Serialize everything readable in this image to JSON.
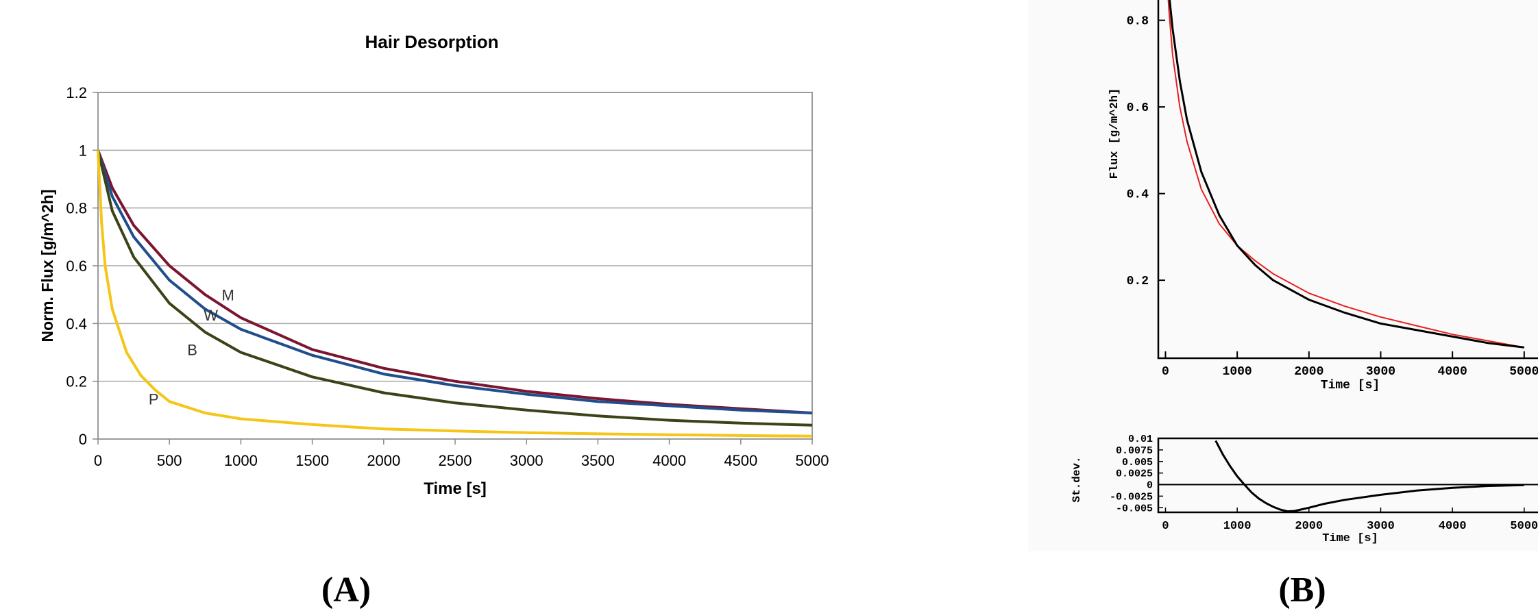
{
  "panel_labels": {
    "a": "(A)",
    "b": "(B)"
  },
  "chart_data": [
    {
      "type": "line",
      "title": "Hair Desorption",
      "xlabel": "Time [s]",
      "ylabel": "Norm. Flux [g/m^2h]",
      "xlim": [
        0,
        5000
      ],
      "ylim": [
        0,
        1.2
      ],
      "xticks": [
        "0",
        "500",
        "1000",
        "1500",
        "2000",
        "2500",
        "3000",
        "3500",
        "4000",
        "4500",
        "5000"
      ],
      "yticks": [
        "0",
        "0.2",
        "0.4",
        "0.6",
        "0.8",
        "1",
        "1.2"
      ],
      "grid": true,
      "series": [
        {
          "name": "M",
          "color": "#7b1530",
          "label_at": [
            910,
            0.48
          ],
          "x": [
            0,
            100,
            250,
            500,
            750,
            1000,
            1500,
            2000,
            2500,
            3000,
            3500,
            4000,
            4500,
            5000
          ],
          "y": [
            1.0,
            0.87,
            0.74,
            0.6,
            0.5,
            0.42,
            0.31,
            0.245,
            0.2,
            0.165,
            0.14,
            0.12,
            0.105,
            0.09
          ]
        },
        {
          "name": "W",
          "color": "#1f4e8c",
          "label_at": [
            790,
            0.41
          ],
          "x": [
            0,
            100,
            250,
            500,
            750,
            1000,
            1500,
            2000,
            2500,
            3000,
            3500,
            4000,
            4500,
            5000
          ],
          "y": [
            1.0,
            0.84,
            0.7,
            0.55,
            0.45,
            0.38,
            0.29,
            0.225,
            0.185,
            0.155,
            0.13,
            0.115,
            0.1,
            0.09
          ]
        },
        {
          "name": "B",
          "color": "#3a4418",
          "label_at": [
            660,
            0.29
          ],
          "x": [
            0,
            100,
            250,
            500,
            750,
            1000,
            1500,
            2000,
            2500,
            3000,
            3500,
            4000,
            4500,
            5000
          ],
          "y": [
            1.0,
            0.79,
            0.63,
            0.47,
            0.37,
            0.3,
            0.215,
            0.16,
            0.125,
            0.1,
            0.08,
            0.065,
            0.055,
            0.048
          ]
        },
        {
          "name": "P",
          "color": "#f5c518",
          "label_at": [
            390,
            0.12
          ],
          "x": [
            0,
            25,
            50,
            100,
            200,
            300,
            400,
            500,
            750,
            1000,
            1500,
            2000,
            2500,
            3000,
            3500,
            4000,
            4500,
            5000
          ],
          "y": [
            1.0,
            0.75,
            0.6,
            0.45,
            0.3,
            0.22,
            0.17,
            0.13,
            0.09,
            0.07,
            0.05,
            0.035,
            0.028,
            0.022,
            0.018,
            0.015,
            0.012,
            0.01
          ]
        }
      ]
    },
    {
      "type": "line",
      "title": "",
      "xlabel": "Time [s]",
      "ylabel": "Flux [g/m^2h]",
      "xlim": [
        -100,
        5250
      ],
      "ylim": [
        0.02,
        0.85
      ],
      "xticks": [
        "0",
        "1000",
        "2000",
        "3000",
        "4000",
        "5000"
      ],
      "yticks": [
        "0.8",
        "0.6",
        "0.4",
        "0.2"
      ],
      "grid": false,
      "series": [
        {
          "color": "#e8201c",
          "x": [
            0,
            50,
            100,
            200,
            300,
            500,
            750,
            1000,
            1250,
            1500,
            2000,
            2500,
            3000,
            3500,
            4000,
            4500,
            5000
          ],
          "y": [
            0.95,
            0.82,
            0.72,
            0.6,
            0.52,
            0.41,
            0.33,
            0.28,
            0.245,
            0.215,
            0.17,
            0.14,
            0.115,
            0.095,
            0.075,
            0.06,
            0.045
          ]
        },
        {
          "color": "#000000",
          "x": [
            0,
            50,
            100,
            200,
            300,
            500,
            750,
            1000,
            1250,
            1500,
            2000,
            2500,
            3000,
            3500,
            4000,
            4500,
            5000
          ],
          "y": [
            0.95,
            0.86,
            0.78,
            0.66,
            0.57,
            0.45,
            0.35,
            0.28,
            0.235,
            0.2,
            0.155,
            0.125,
            0.1,
            0.085,
            0.07,
            0.055,
            0.045
          ]
        }
      ]
    },
    {
      "type": "line",
      "title": "",
      "xlabel": "Time [s]",
      "ylabel": "St.dev.",
      "xlim": [
        -100,
        5250
      ],
      "ylim": [
        -0.006,
        0.01
      ],
      "xticks": [
        "0",
        "1000",
        "2000",
        "3000",
        "4000",
        "5000"
      ],
      "yticks": [
        "0.01",
        "0.0075",
        "0.005",
        "0.0025",
        "0",
        "-0.0025",
        "-0.005"
      ],
      "zero_line": true,
      "grid": false,
      "series": [
        {
          "color": "#000000",
          "x": [
            700,
            800,
            900,
            1000,
            1100,
            1200,
            1300,
            1400,
            1500,
            1600,
            1700,
            1800,
            2000,
            2200,
            2500,
            3000,
            3500,
            4000,
            4500,
            5000
          ],
          "y": [
            0.0095,
            0.0065,
            0.004,
            0.0018,
            0.0,
            -0.0017,
            -0.003,
            -0.004,
            -0.0048,
            -0.0054,
            -0.0058,
            -0.0057,
            -0.005,
            -0.0042,
            -0.0033,
            -0.0022,
            -0.0013,
            -0.0007,
            -0.0003,
            -0.0001
          ]
        }
      ]
    }
  ]
}
